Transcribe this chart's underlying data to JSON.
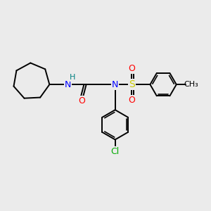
{
  "background_color": "#ebebeb",
  "bond_color": "#000000",
  "N_color": "#0000ff",
  "H_color": "#008080",
  "O_color": "#ff0000",
  "S_color": "#cccc00",
  "Cl_color": "#00aa00",
  "line_width": 1.4,
  "font_size": 9,
  "figsize": [
    3.0,
    3.0
  ],
  "dpi": 100,
  "xlim": [
    0,
    12
  ],
  "ylim": [
    0,
    12
  ]
}
